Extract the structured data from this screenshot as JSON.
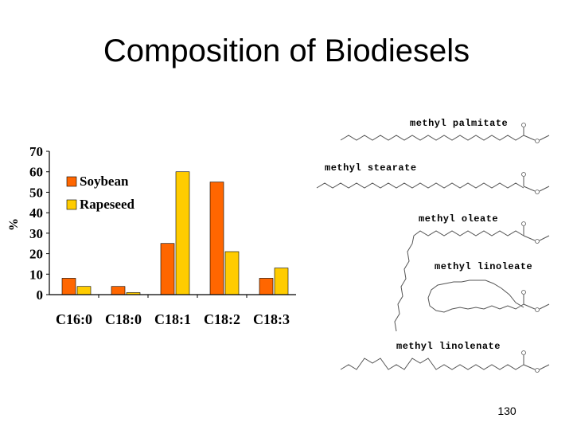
{
  "slide": {
    "title": "Composition of Biodiesels",
    "page_number": "130"
  },
  "chart_data": {
    "type": "bar",
    "categories": [
      "C16:0",
      "C18:0",
      "C18:1",
      "C18:2",
      "C18:3"
    ],
    "series": [
      {
        "name": "Soybean",
        "values": [
          8,
          4,
          25,
          55,
          8
        ],
        "color": "#ff6600"
      },
      {
        "name": "Rapeseed",
        "values": [
          4,
          1,
          60,
          21,
          13
        ],
        "color": "#ffcc00"
      }
    ],
    "title": "",
    "xlabel": "",
    "ylabel": "%",
    "ylim": [
      0,
      70
    ],
    "yticks": [
      0,
      10,
      20,
      30,
      40,
      50,
      60,
      70
    ],
    "grid": false,
    "legend": "top-left"
  },
  "molecules": [
    {
      "name": "methyl palmitate"
    },
    {
      "name": "methyl stearate"
    },
    {
      "name": "methyl oleate"
    },
    {
      "name": "methyl linoleate"
    },
    {
      "name": "methyl linolenate"
    }
  ]
}
